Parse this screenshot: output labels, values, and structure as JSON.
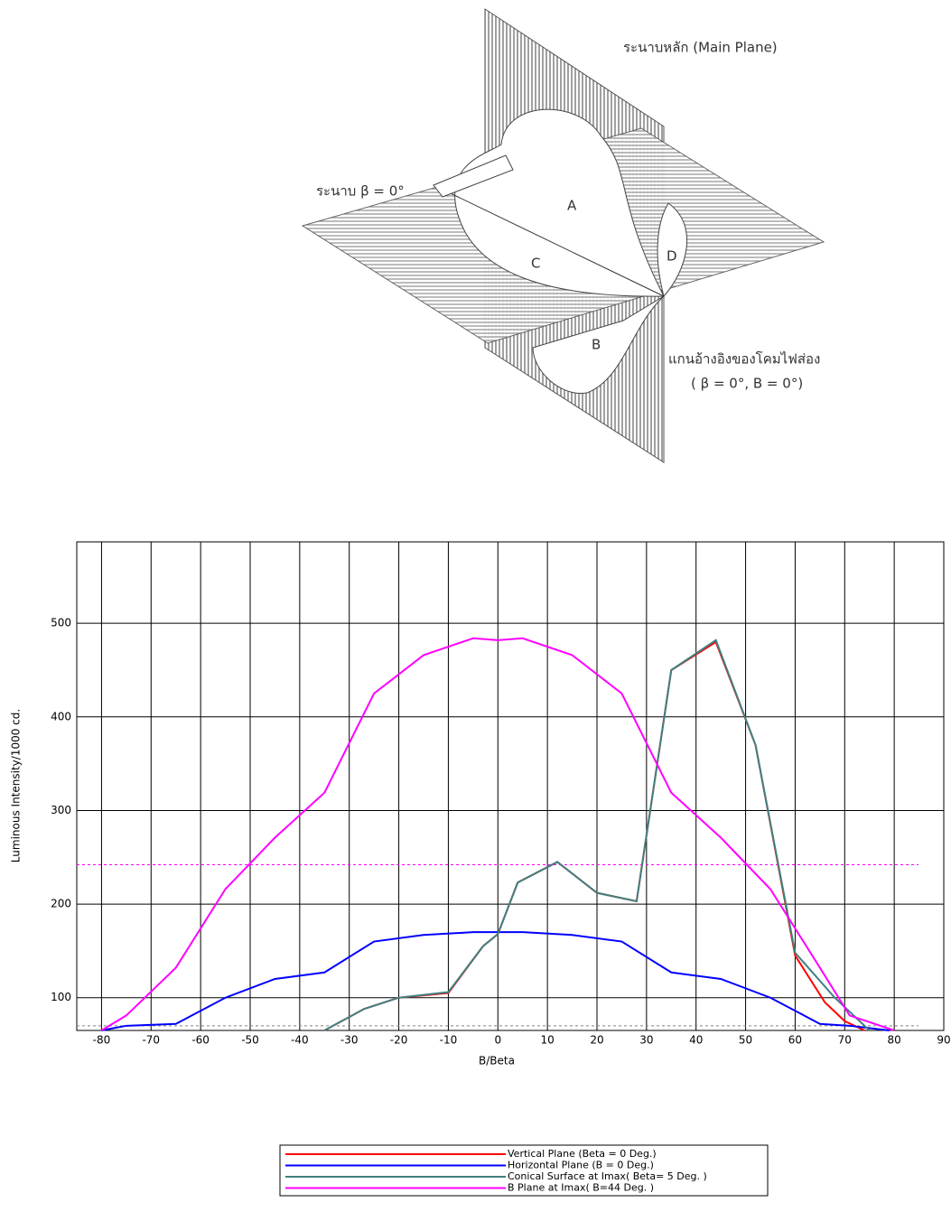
{
  "diagram": {
    "main_plane": "ระนาบหลัก (Main Plane)",
    "beta_plane": "ระนาบ β = 0°",
    "label_a": "A",
    "label_b": "B",
    "label_c": "C",
    "label_d": "D",
    "reference_axis": "แกนอ้างอิงของโคมไฟส่อง",
    "reference_axis_note": "( β = 0°, B = 0°)"
  },
  "chart_data": {
    "type": "line",
    "x_label": "B/Beta",
    "y_label": "Luminous Intensity/1000 cd.",
    "xlim": [
      -85,
      90
    ],
    "xticks": [
      -80,
      -70,
      -60,
      -50,
      -40,
      -30,
      -20,
      -10,
      0,
      10,
      20,
      30,
      40,
      50,
      60,
      70,
      80,
      90
    ],
    "ylim": [
      65,
      587
    ],
    "yticks": [
      100,
      200,
      300,
      400,
      500
    ],
    "grid": true,
    "legend": "bottom",
    "reference_lines": [
      {
        "value": 242,
        "color": "#ff00ff"
      },
      {
        "value": 70,
        "color": "#808080"
      }
    ],
    "series": [
      {
        "name": "Vertical Plane (Beta = 0 Deg.)",
        "color": "#ff0000",
        "x": [
          -35,
          -27,
          -20,
          -10,
          -3,
          0,
          4,
          12,
          20,
          28,
          35,
          44,
          52,
          60,
          66,
          70,
          74
        ],
        "values": [
          65,
          88,
          100,
          105,
          155,
          168,
          223,
          245,
          212,
          203,
          450,
          480,
          370,
          145,
          95,
          75,
          65
        ]
      },
      {
        "name": "Horizontal Plane (B = 0 Deg.)",
        "color": "#0000ff",
        "x": [
          -80,
          -75,
          -65,
          -55,
          -45,
          -35,
          -25,
          -15,
          -5,
          0,
          5,
          15,
          25,
          35,
          45,
          55,
          65,
          71,
          79
        ],
        "values": [
          65,
          70,
          72,
          100,
          120,
          127,
          160,
          167,
          170,
          170,
          170,
          167,
          160,
          127,
          120,
          100,
          72,
          70,
          65
        ]
      },
      {
        "name": "Conical Surface at Imax( Beta= 5  Deg. )",
        "color": "#408080",
        "x": [
          -35,
          -27,
          -20,
          -10,
          -3,
          0,
          4,
          12,
          20,
          28,
          35,
          44,
          52,
          60,
          68,
          75
        ],
        "values": [
          65,
          88,
          100,
          106,
          155,
          168,
          223,
          245,
          212,
          203,
          450,
          482,
          370,
          148,
          100,
          65
        ]
      },
      {
        "name": "B Plane at Imax( B=44  Deg. )",
        "color": "#ff00ff",
        "x": [
          -80,
          -75,
          -65,
          -55,
          -45,
          -35,
          -25,
          -15,
          -5,
          0,
          5,
          15,
          25,
          35,
          45,
          55,
          65,
          71,
          80
        ],
        "values": [
          65,
          81,
          132,
          216,
          271,
          319,
          425,
          466,
          484,
          482,
          484,
          466,
          425,
          319,
          271,
          216,
          132,
          81,
          65
        ]
      }
    ]
  }
}
